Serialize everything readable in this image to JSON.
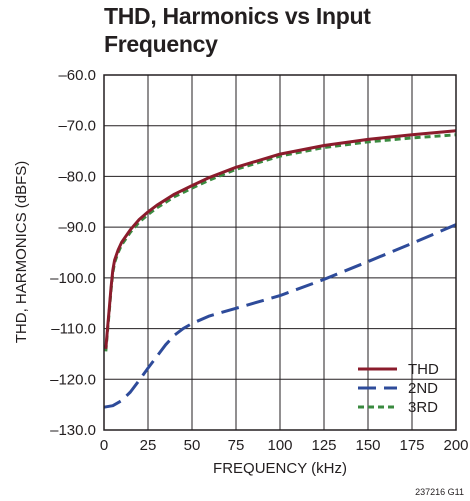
{
  "chart_data": {
    "type": "line",
    "title": "THD, Harmonics vs Input\nFrequency",
    "xlabel": "FREQUENCY (kHz)",
    "ylabel": "THD, HARMONICS (dBFS)",
    "xlim": [
      0,
      200
    ],
    "ylim": [
      -130,
      -60
    ],
    "x_ticks": [
      0,
      25,
      50,
      75,
      100,
      125,
      150,
      175,
      200
    ],
    "y_ticks": [
      -60.0,
      -70.0,
      -80.0,
      -90.0,
      -100.0,
      -110.0,
      -120.0,
      -130.0
    ],
    "y_tick_labels": [
      "–60.0",
      "–70.0",
      "–80.0",
      "–90.0",
      "–100.0",
      "–110.0",
      "–120.0",
      "–130.0"
    ],
    "grid": true,
    "legend_position": "bottom-right",
    "series": [
      {
        "name": "THD",
        "color": "#8b1c2c",
        "dash": "solid",
        "x": [
          1,
          2,
          3,
          4,
          5,
          6,
          8,
          10,
          15,
          20,
          25,
          30,
          40,
          50,
          60,
          75,
          100,
          125,
          150,
          175,
          200
        ],
        "y": [
          -114,
          -110,
          -106,
          -102,
          -98.5,
          -96.5,
          -94.5,
          -93,
          -90.5,
          -88.5,
          -87,
          -85.7,
          -83.5,
          -81.8,
          -80.2,
          -78.2,
          -75.6,
          -73.9,
          -72.7,
          -71.8,
          -71
        ]
      },
      {
        "name": "2ND",
        "color": "#2e4b9a",
        "dash": "long-dash",
        "x": [
          0,
          5,
          10,
          15,
          20,
          25,
          30,
          35,
          40,
          45,
          50,
          60,
          75,
          100,
          125,
          150,
          175,
          200
        ],
        "y": [
          -125.5,
          -125.2,
          -124.2,
          -122.5,
          -120.2,
          -117.8,
          -115.5,
          -113.2,
          -111.3,
          -110,
          -109,
          -107.5,
          -106,
          -103.5,
          -100.3,
          -96.8,
          -93.2,
          -89.5
        ]
      },
      {
        "name": "3RD",
        "color": "#3a8a3f",
        "dash": "short-dash",
        "x": [
          1,
          2,
          3,
          4,
          5,
          6,
          8,
          10,
          15,
          20,
          25,
          30,
          40,
          50,
          60,
          75,
          100,
          125,
          150,
          175,
          200
        ],
        "y": [
          -114.5,
          -110.5,
          -106.5,
          -102.5,
          -99,
          -97,
          -95,
          -93.5,
          -91,
          -89,
          -87.5,
          -86.2,
          -84,
          -82.3,
          -80.7,
          -78.6,
          -76,
          -74.3,
          -73.2,
          -72.4,
          -71.8
        ]
      }
    ],
    "figure_id": "237216 G11"
  }
}
